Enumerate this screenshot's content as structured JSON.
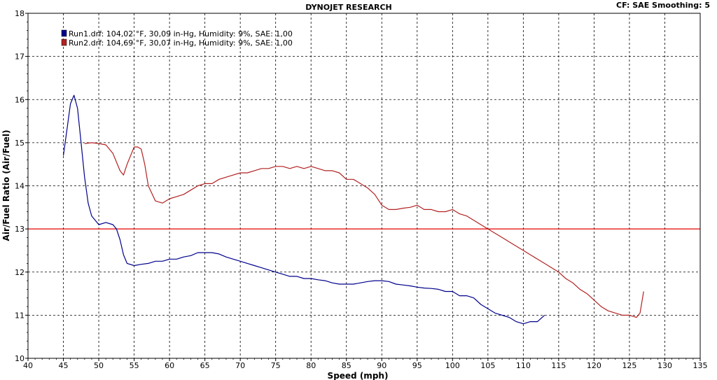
{
  "chart_data": {
    "type": "line",
    "title": "DYNOJET RESEARCH",
    "header_right": "CF: SAE  Smoothing: 5",
    "xlabel": "Speed (mph)",
    "ylabel": "Air/Fuel Ratio (Air/Fuel)",
    "xlim": [
      40,
      135
    ],
    "ylim": [
      10,
      18
    ],
    "x_ticks": [
      40,
      45,
      50,
      55,
      60,
      65,
      70,
      75,
      80,
      85,
      90,
      95,
      100,
      105,
      110,
      115,
      120,
      125,
      130,
      135
    ],
    "y_ticks": [
      10,
      11,
      12,
      13,
      14,
      15,
      16,
      17,
      18
    ],
    "grid": true,
    "legend_position": "top-left",
    "reference_line": {
      "y": 13.0,
      "color": "#e60000"
    },
    "series": [
      {
        "name": "Run1.drf: 104,02 °F, 30,09 in-Hg, Humidity: 9%, SAE: 1,00",
        "color": "#00008b",
        "x": [
          45,
          45.5,
          46,
          46.5,
          47,
          47.5,
          48,
          48.5,
          49,
          49.5,
          50,
          51,
          52,
          52.5,
          53,
          53.5,
          54,
          55,
          56,
          57,
          58,
          59,
          60,
          61,
          62,
          63,
          64,
          65,
          66,
          67,
          68,
          69,
          70,
          71,
          72,
          73,
          74,
          75,
          76,
          77,
          78,
          79,
          80,
          81,
          82,
          83,
          84,
          85,
          86,
          87,
          88,
          89,
          90,
          91,
          92,
          93,
          94,
          95,
          96,
          97,
          98,
          99,
          100,
          101,
          102,
          103,
          104,
          105,
          106,
          107,
          108,
          109,
          110,
          111,
          112,
          113
        ],
        "y": [
          14.7,
          15.3,
          15.9,
          16.1,
          15.8,
          15.0,
          14.2,
          13.6,
          13.3,
          13.2,
          13.1,
          13.15,
          13.1,
          13.0,
          12.75,
          12.4,
          12.2,
          12.15,
          12.18,
          12.2,
          12.25,
          12.25,
          12.3,
          12.3,
          12.35,
          12.38,
          12.45,
          12.45,
          12.45,
          12.42,
          12.35,
          12.3,
          12.25,
          12.2,
          12.15,
          12.1,
          12.05,
          12.0,
          11.95,
          11.9,
          11.9,
          11.85,
          11.85,
          11.82,
          11.8,
          11.75,
          11.72,
          11.72,
          11.72,
          11.75,
          11.78,
          11.8,
          11.8,
          11.78,
          11.72,
          11.7,
          11.68,
          11.65,
          11.63,
          11.62,
          11.6,
          11.55,
          11.55,
          11.45,
          11.45,
          11.4,
          11.25,
          11.15,
          11.05,
          11.0,
          10.95,
          10.85,
          10.8,
          10.85,
          10.85,
          11.0
        ]
      },
      {
        "name": "Run2.drf: 104,69 °F, 30,07 in-Hg, Humidity: 9%, SAE: 1,00",
        "color": "#b22222",
        "x": [
          48,
          49,
          50,
          51,
          52,
          53,
          53.5,
          54,
          55,
          55.5,
          56,
          56.5,
          57,
          58,
          59,
          60,
          61,
          62,
          63,
          64,
          65,
          66,
          67,
          68,
          69,
          70,
          71,
          72,
          73,
          74,
          75,
          76,
          77,
          78,
          79,
          80,
          81,
          82,
          83,
          84,
          85,
          86,
          87,
          88,
          89,
          90,
          91,
          92,
          93,
          94,
          95,
          96,
          97,
          98,
          99,
          100,
          101,
          102,
          103,
          104,
          105,
          106,
          107,
          108,
          109,
          110,
          111,
          112,
          113,
          114,
          115,
          116,
          117,
          118,
          119,
          120,
          121,
          122,
          123,
          124,
          125,
          126,
          126.5,
          127
        ],
        "y": [
          14.98,
          15.0,
          14.98,
          14.95,
          14.75,
          14.35,
          14.25,
          14.5,
          14.9,
          14.9,
          14.85,
          14.5,
          14.0,
          13.65,
          13.6,
          13.7,
          13.75,
          13.8,
          13.9,
          14.0,
          14.05,
          14.05,
          14.15,
          14.2,
          14.25,
          14.3,
          14.3,
          14.35,
          14.4,
          14.4,
          14.45,
          14.45,
          14.4,
          14.45,
          14.4,
          14.45,
          14.4,
          14.35,
          14.35,
          14.3,
          14.15,
          14.15,
          14.05,
          13.95,
          13.8,
          13.55,
          13.45,
          13.45,
          13.48,
          13.5,
          13.55,
          13.45,
          13.45,
          13.4,
          13.4,
          13.45,
          13.35,
          13.3,
          13.2,
          13.1,
          13.0,
          12.9,
          12.8,
          12.7,
          12.6,
          12.5,
          12.4,
          12.3,
          12.2,
          12.1,
          12.0,
          11.85,
          11.75,
          11.6,
          11.5,
          11.35,
          11.2,
          11.1,
          11.05,
          11.0,
          11.0,
          10.95,
          11.05,
          11.55
        ]
      }
    ]
  }
}
